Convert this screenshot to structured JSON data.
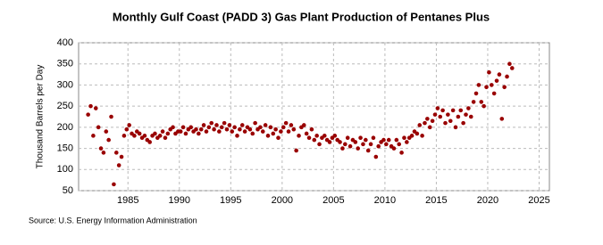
{
  "chart_data": {
    "type": "scatter",
    "title": "Monthly Gulf Coast (PADD 3) Gas Plant Production of Pentanes Plus",
    "y_label": "Thousand Barrels per Day",
    "source": "Source: U.S. Energy Information Administration",
    "color": "#990000",
    "xlim": [
      1980.2,
      2026
    ],
    "ylim": [
      50,
      400
    ],
    "xticks": [
      1985,
      1990,
      1995,
      2000,
      2005,
      2010,
      2015,
      2020,
      2025
    ],
    "yticks": [
      50,
      100,
      150,
      200,
      250,
      300,
      350,
      400
    ],
    "grid": true,
    "x": [
      1981.125,
      1981.375,
      1981.625,
      1981.875,
      1982.125,
      1982.375,
      1982.625,
      1982.875,
      1983.125,
      1983.375,
      1983.625,
      1983.875,
      1984.125,
      1984.375,
      1984.625,
      1984.875,
      1985.125,
      1985.375,
      1985.625,
      1985.875,
      1986.125,
      1986.375,
      1986.625,
      1986.875,
      1987.125,
      1987.375,
      1987.625,
      1987.875,
      1988.125,
      1988.375,
      1988.625,
      1988.875,
      1989.125,
      1989.375,
      1989.625,
      1989.875,
      1990.125,
      1990.375,
      1990.625,
      1990.875,
      1991.125,
      1991.375,
      1991.625,
      1991.875,
      1992.125,
      1992.375,
      1992.625,
      1992.875,
      1993.125,
      1993.375,
      1993.625,
      1993.875,
      1994.125,
      1994.375,
      1994.625,
      1994.875,
      1995.125,
      1995.375,
      1995.625,
      1995.875,
      1996.125,
      1996.375,
      1996.625,
      1996.875,
      1997.125,
      1997.375,
      1997.625,
      1997.875,
      1998.125,
      1998.375,
      1998.625,
      1998.875,
      1999.125,
      1999.375,
      1999.625,
      1999.875,
      2000.125,
      2000.375,
      2000.625,
      2000.875,
      2001.125,
      2001.375,
      2001.625,
      2001.875,
      2002.125,
      2002.375,
      2002.625,
      2002.875,
      2003.125,
      2003.375,
      2003.625,
      2003.875,
      2004.125,
      2004.375,
      2004.625,
      2004.875,
      2005.125,
      2005.375,
      2005.625,
      2005.875,
      2006.125,
      2006.375,
      2006.625,
      2006.875,
      2007.125,
      2007.375,
      2007.625,
      2007.875,
      2008.125,
      2008.375,
      2008.625,
      2008.875,
      2009.125,
      2009.375,
      2009.625,
      2009.875,
      2010.125,
      2010.375,
      2010.625,
      2010.875,
      2011.125,
      2011.375,
      2011.625,
      2011.875,
      2012.125,
      2012.375,
      2012.625,
      2012.875,
      2013.125,
      2013.375,
      2013.625,
      2013.875,
      2014.125,
      2014.375,
      2014.625,
      2014.875,
      2015.125,
      2015.375,
      2015.625,
      2015.875,
      2016.125,
      2016.375,
      2016.625,
      2016.875,
      2017.125,
      2017.375,
      2017.625,
      2017.875,
      2018.125,
      2018.375,
      2018.625,
      2018.875,
      2019.125,
      2019.375,
      2019.625,
      2019.875,
      2020.125,
      2020.375,
      2020.625,
      2020.875,
      2021.125,
      2021.375,
      2021.625,
      2021.875,
      2022.125,
      2022.375
    ],
    "values": [
      230,
      250,
      180,
      245,
      200,
      150,
      140,
      190,
      170,
      225,
      65,
      140,
      110,
      130,
      180,
      195,
      205,
      185,
      180,
      190,
      185,
      175,
      180,
      170,
      165,
      180,
      185,
      175,
      180,
      190,
      175,
      185,
      195,
      200,
      185,
      190,
      190,
      200,
      185,
      195,
      200,
      190,
      195,
      185,
      195,
      205,
      190,
      200,
      210,
      195,
      205,
      190,
      200,
      210,
      195,
      205,
      190,
      200,
      180,
      195,
      205,
      190,
      200,
      195,
      185,
      210,
      195,
      200,
      190,
      205,
      180,
      200,
      185,
      195,
      175,
      190,
      200,
      210,
      190,
      205,
      195,
      145,
      180,
      200,
      205,
      185,
      175,
      195,
      170,
      180,
      160,
      175,
      180,
      170,
      165,
      175,
      180,
      170,
      165,
      150,
      160,
      175,
      155,
      170,
      165,
      150,
      175,
      160,
      170,
      145,
      160,
      175,
      130,
      155,
      165,
      170,
      160,
      170,
      155,
      150,
      170,
      160,
      140,
      175,
      165,
      175,
      180,
      190,
      185,
      205,
      180,
      210,
      220,
      200,
      215,
      230,
      245,
      225,
      240,
      210,
      230,
      215,
      240,
      200,
      225,
      240,
      210,
      230,
      245,
      225,
      260,
      280,
      300,
      260,
      250,
      295,
      330,
      300,
      280,
      310,
      325,
      220,
      295,
      320,
      350,
      340
    ]
  }
}
